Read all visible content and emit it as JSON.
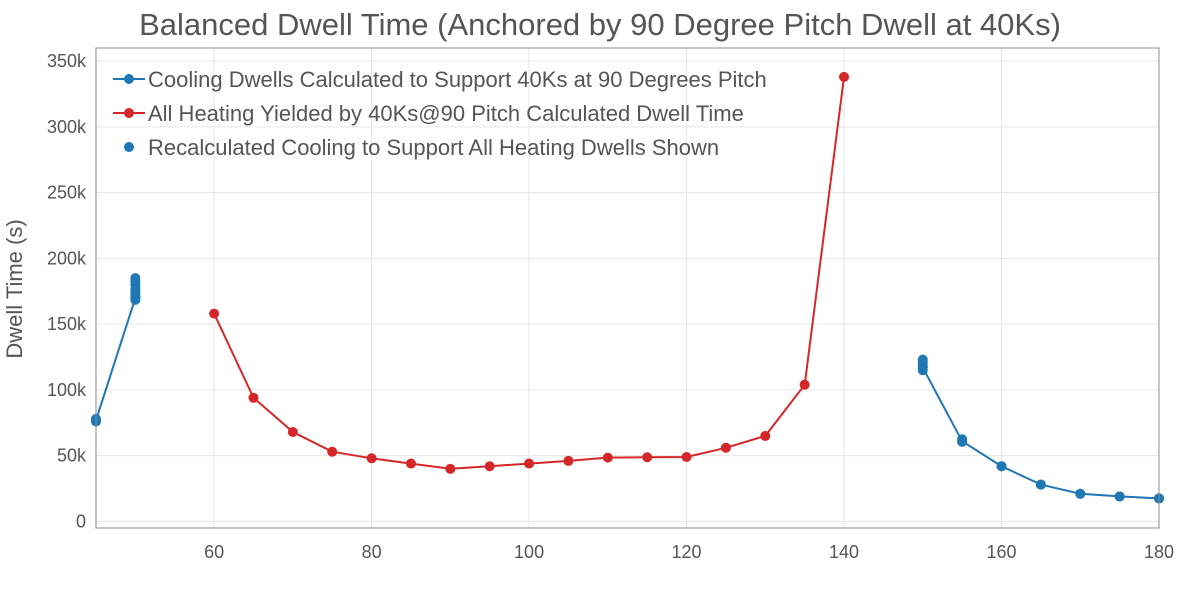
{
  "chart_data": {
    "type": "line",
    "title": "Balanced Dwell Time (Anchored by 90 Degree Pitch Dwell at 40Ks)",
    "xlabel": "",
    "ylabel": "Dwell Time (s)",
    "xlim": [
      45,
      180
    ],
    "ylim": [
      -5000,
      360000
    ],
    "x_ticks": [
      60,
      80,
      100,
      120,
      140,
      160,
      180
    ],
    "x_tick_labels": [
      "60",
      "80",
      "100",
      "120",
      "140",
      "160",
      "180"
    ],
    "y_ticks": [
      0,
      50000,
      100000,
      150000,
      200000,
      250000,
      300000,
      350000
    ],
    "y_tick_labels": [
      "0",
      "50k",
      "100k",
      "150k",
      "200k",
      "250k",
      "300k",
      "350k"
    ],
    "grid": true,
    "legend_position": "top-left",
    "series": [
      {
        "name": "Cooling Dwells Calculated to Support 40Ks at 90 Degrees Pitch",
        "color": "#1f77b4",
        "mode": "lines+markers",
        "segments": [
          [
            [
              45,
              77000
            ],
            [
              50,
              170000
            ]
          ],
          [
            [
              150,
              117000
            ],
            [
              155,
              61000
            ],
            [
              160,
              42000
            ],
            [
              165,
              28000
            ],
            [
              170,
              21000
            ],
            [
              175,
              19000
            ],
            [
              180,
              17500
            ]
          ]
        ]
      },
      {
        "name": "All Heating Yielded by 40Ks@90 Pitch Calculated Dwell Time",
        "color": "#d62728",
        "mode": "lines+markers",
        "segments": [
          [
            [
              60,
              158000
            ],
            [
              65,
              94000
            ],
            [
              70,
              68000
            ],
            [
              75,
              53000
            ],
            [
              80,
              48000
            ],
            [
              85,
              44000
            ],
            [
              90,
              40000
            ],
            [
              95,
              42000
            ],
            [
              100,
              44000
            ],
            [
              105,
              46000
            ],
            [
              110,
              48500
            ],
            [
              115,
              48800
            ],
            [
              120,
              49000
            ],
            [
              125,
              56000
            ],
            [
              130,
              65000
            ],
            [
              135,
              104000
            ],
            [
              140,
              338000
            ]
          ]
        ]
      },
      {
        "name": "Recalculated Cooling to Support All Heating Dwells Shown",
        "color": "#1f77b4",
        "mode": "markers",
        "points": [
          [
            45,
            76000
          ],
          [
            45,
            78000
          ],
          [
            50,
            168500
          ],
          [
            50,
            171000
          ],
          [
            50,
            173000
          ],
          [
            50,
            175000
          ],
          [
            50,
            177000
          ],
          [
            50,
            180000
          ],
          [
            50,
            182500
          ],
          [
            50,
            185000
          ],
          [
            150,
            115000
          ],
          [
            150,
            117500
          ],
          [
            150,
            119500
          ],
          [
            150,
            121500
          ],
          [
            150,
            123000
          ],
          [
            155,
            60500
          ],
          [
            155,
            62500
          ],
          [
            160,
            42000
          ],
          [
            165,
            28000
          ],
          [
            170,
            21000
          ],
          [
            175,
            19000
          ],
          [
            180,
            17500
          ]
        ]
      }
    ]
  }
}
